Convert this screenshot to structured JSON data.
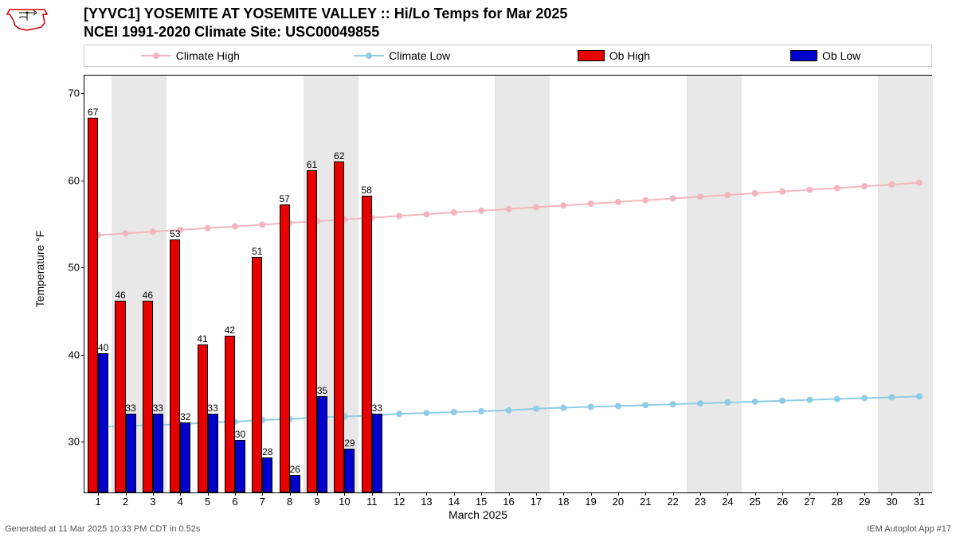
{
  "title_line1": "[YYVC1] YOSEMITE AT YOSEMITE VALLEY :: Hi/Lo Temps for Mar 2025",
  "title_line2": "NCEI 1991-2020 Climate Site: USC00049855",
  "legend": {
    "climate_high": "Climate High",
    "climate_low": "Climate Low",
    "ob_high": "Ob High",
    "ob_low": "Ob Low"
  },
  "colors": {
    "climate_high": "#f5b5c0",
    "climate_low": "#8fcce6",
    "ob_high": "#e60000",
    "ob_low": "#0000cc",
    "shade": "#e8e8e8",
    "bg": "#ffffff"
  },
  "ylabel": "Temperature °F",
  "xlabel": "March 2025",
  "ylim": [
    24,
    72
  ],
  "yticks": [
    30,
    40,
    50,
    60,
    70
  ],
  "days": 31,
  "shade_days": [
    [
      1,
      2
    ],
    [
      8,
      9
    ],
    [
      15,
      16
    ],
    [
      22,
      23
    ],
    [
      29,
      30
    ]
  ],
  "ob_high": [
    67,
    46,
    46,
    53,
    41,
    42,
    51,
    57,
    61,
    62,
    58
  ],
  "ob_low": [
    40,
    33,
    33,
    32,
    33,
    30,
    28,
    26,
    35,
    29,
    33
  ],
  "climate_high": [
    53.7,
    53.9,
    54.1,
    54.3,
    54.5,
    54.7,
    54.9,
    55.1,
    55.3,
    55.5,
    55.7,
    55.9,
    56.1,
    56.3,
    56.5,
    56.7,
    56.9,
    57.1,
    57.3,
    57.5,
    57.7,
    57.9,
    58.1,
    58.3,
    58.5,
    58.7,
    58.9,
    59.1,
    59.3,
    59.5,
    59.7
  ],
  "climate_low": [
    31.7,
    31.8,
    31.9,
    32.0,
    32.2,
    32.3,
    32.5,
    32.6,
    32.8,
    32.9,
    33.0,
    33.2,
    33.3,
    33.4,
    33.5,
    33.6,
    33.8,
    33.9,
    34.0,
    34.1,
    34.2,
    34.3,
    34.4,
    34.5,
    34.6,
    34.7,
    34.8,
    34.9,
    35.0,
    35.1,
    35.2
  ],
  "footer_left": "Generated at 11 Mar 2025 10:33 PM CDT in 0.52s",
  "footer_right": "IEM Autoplot App #17",
  "font": {
    "title_size": 18,
    "axis_size": 14,
    "tick_size": 13,
    "barlabel_size": 12
  }
}
